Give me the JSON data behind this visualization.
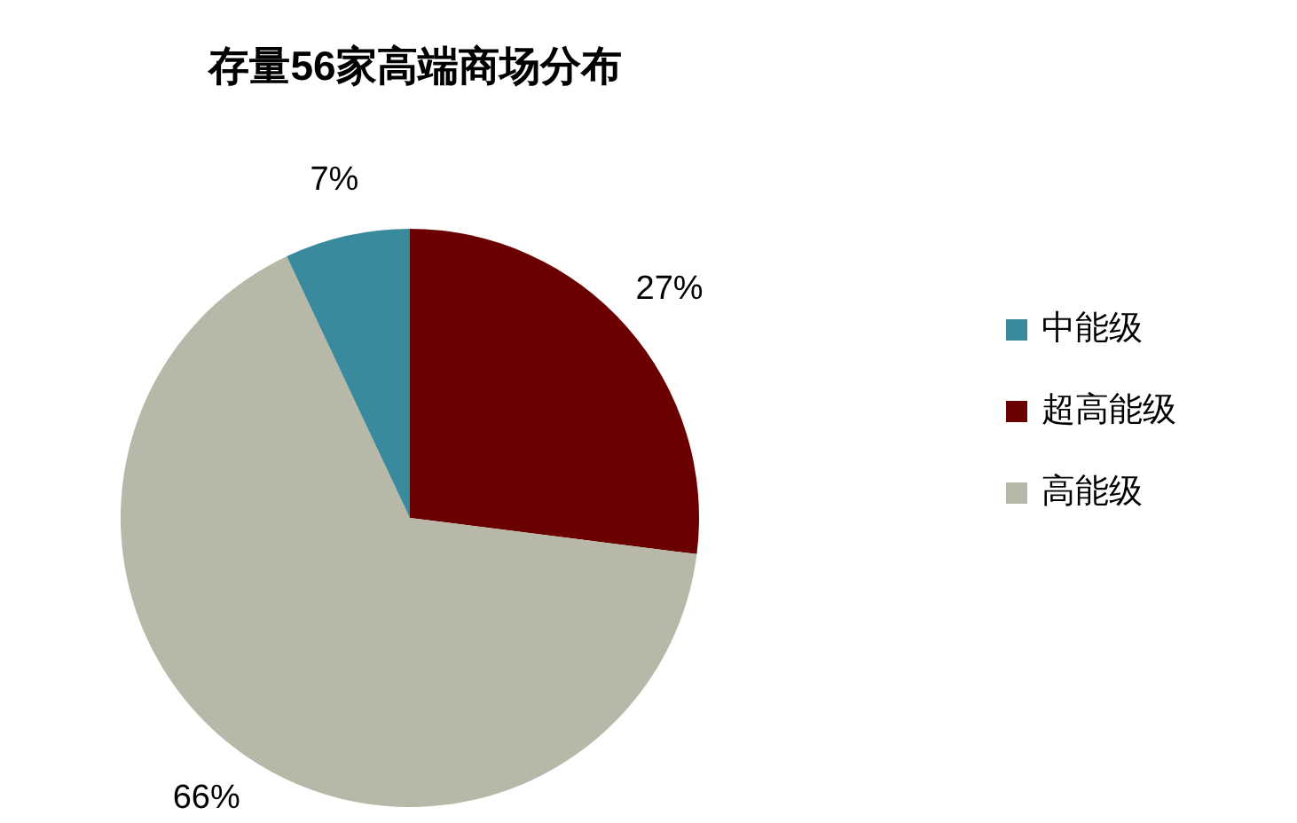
{
  "chart_data": {
    "type": "pie",
    "title": "存量56家高端商场分布",
    "categories": [
      "超高能级",
      "高能级",
      "中能级"
    ],
    "values": [
      27,
      66,
      7
    ],
    "colors": [
      "#6b0000",
      "#b8b8a8",
      "#3a8a9e"
    ],
    "value_labels": [
      "27%",
      "66%",
      "7%"
    ],
    "legend": "right"
  }
}
